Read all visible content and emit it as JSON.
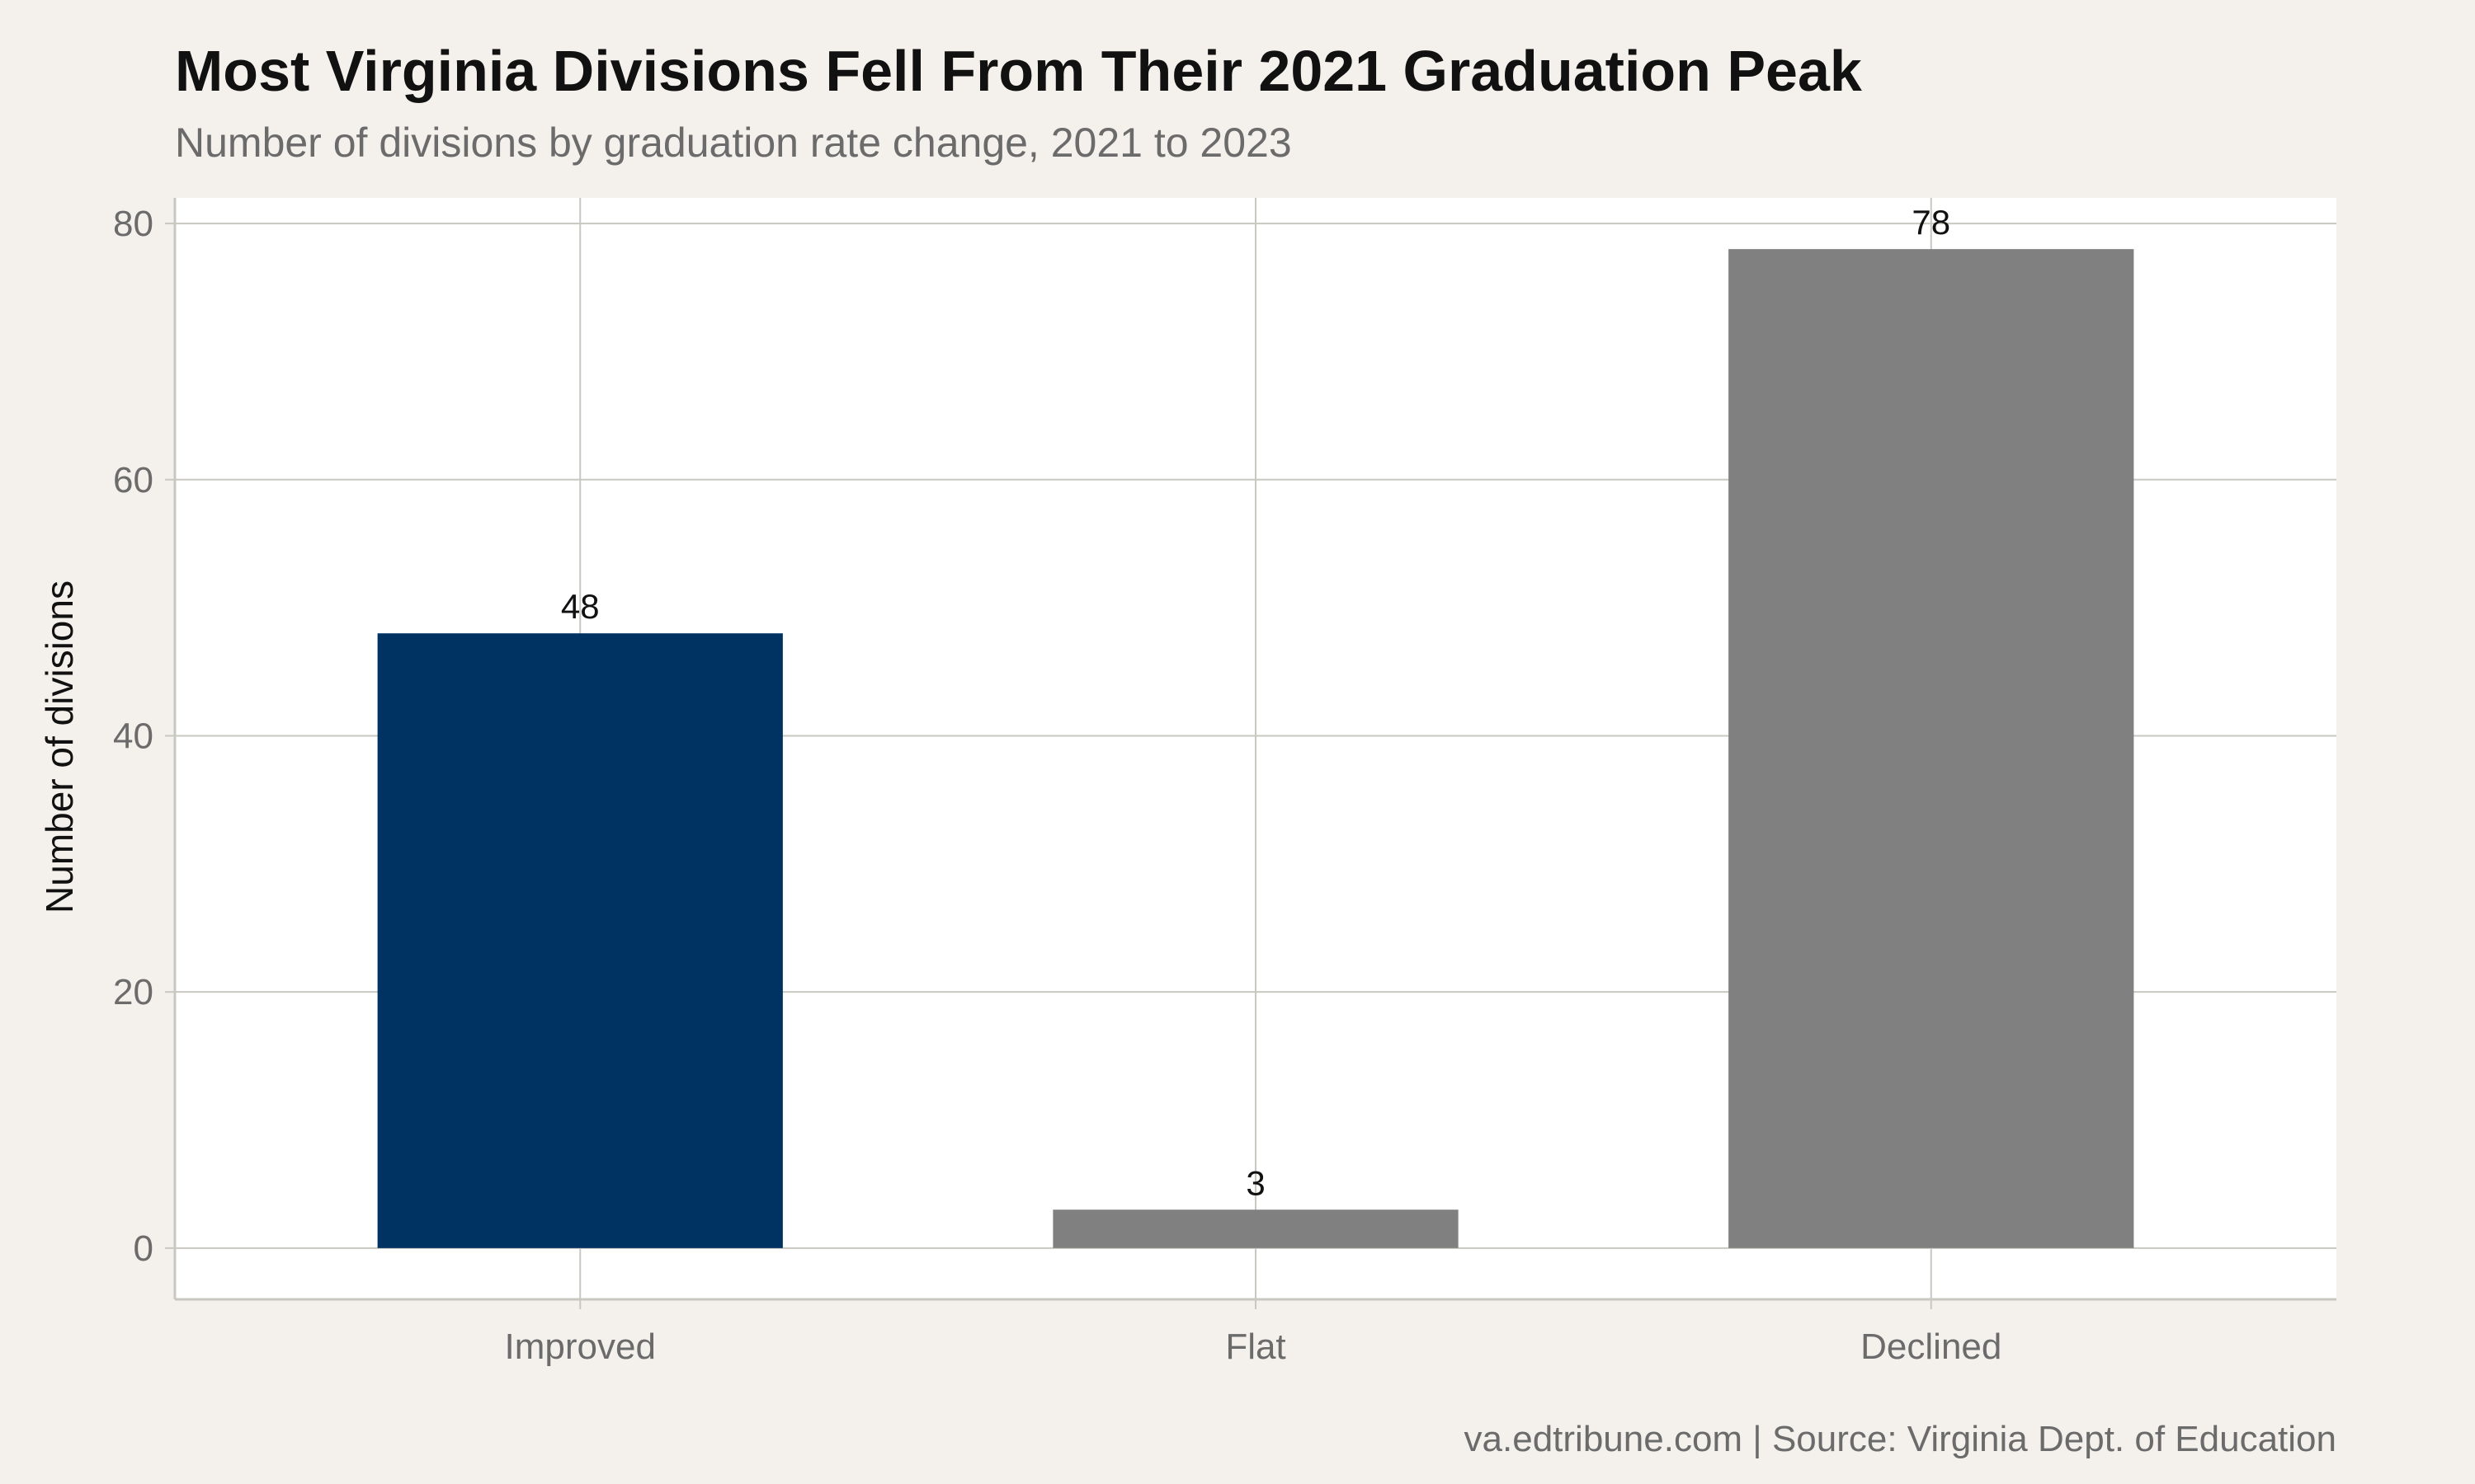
{
  "chart_data": {
    "type": "bar",
    "title": "Most Virginia Divisions Fell From Their 2021 Graduation Peak",
    "subtitle": "Number of divisions by graduation rate change, 2021 to 2023",
    "xlabel": "",
    "ylabel": "Number of divisions",
    "categories": [
      "Improved",
      "Flat",
      "Declined"
    ],
    "values": [
      48,
      3,
      78
    ],
    "value_labels": [
      "48",
      "3",
      "78"
    ],
    "bar_colors": [
      "#003262",
      "#808080",
      "#808080"
    ],
    "ylim": [
      -4,
      82
    ],
    "yticks": [
      0,
      20,
      40,
      60,
      80
    ],
    "ytick_labels": [
      "0",
      "20",
      "40",
      "60",
      "80"
    ],
    "grid": true,
    "legend": "none",
    "caption": "va.edtribune.com | Source: Virginia Dept. of Education",
    "colors": {
      "background": "#f4f1ec",
      "panel": "#ffffff",
      "gridline": "#c8c8c0",
      "axis": "#c8c8c0"
    }
  }
}
